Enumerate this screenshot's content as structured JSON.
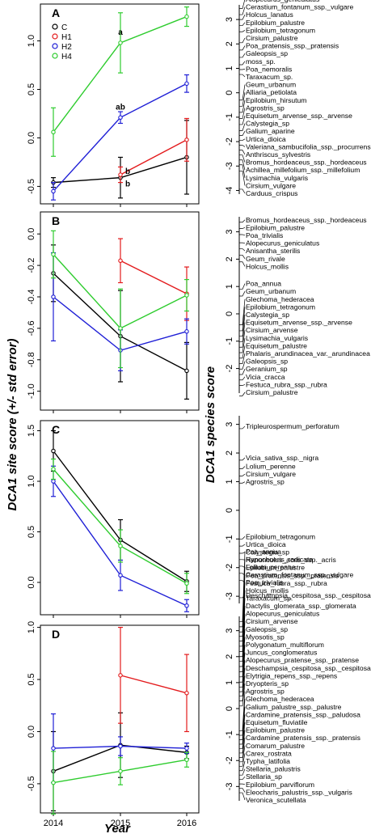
{
  "figure": {
    "y_axis_label_left": "DCA1 site score (+/- std error)",
    "y_axis_label_right": "DCA1 species score",
    "x_axis_label": "Year",
    "x_ticks": [
      "2014",
      "2015",
      "2016"
    ]
  },
  "legend": [
    {
      "name": "C",
      "color": "#000000"
    },
    {
      "name": "H1",
      "color": "#e31a1c"
    },
    {
      "name": "H2",
      "color": "#1f1fd6"
    },
    {
      "name": "H4",
      "color": "#2ecc2e"
    }
  ],
  "chart_data": [
    {
      "type": "line",
      "panel": "A",
      "x": [
        "2014",
        "2015",
        "2016"
      ],
      "ylim": [
        -0.68,
        1.38
      ],
      "yticks": [
        -0.5,
        0.0,
        0.5,
        1.0
      ],
      "ytick_labels": [
        "-0.5",
        "0.0",
        "0.5",
        "1.0"
      ],
      "series": [
        {
          "name": "C",
          "values": [
            -0.46,
            -0.41,
            -0.2
          ],
          "errors": [
            0.05,
            0.21,
            0.38
          ]
        },
        {
          "name": "H1",
          "values": [
            null,
            -0.38,
            -0.02
          ],
          "errors": [
            null,
            0.08,
            0.22
          ]
        },
        {
          "name": "H2",
          "values": [
            -0.55,
            0.21,
            0.56
          ],
          "errors": [
            0.09,
            0.06,
            0.09
          ]
        },
        {
          "name": "H4",
          "values": [
            0.06,
            0.98,
            1.25
          ],
          "errors": [
            0.25,
            0.31,
            0.1
          ]
        }
      ],
      "annotations": [
        "a",
        "ab",
        "b",
        "b"
      ],
      "species_ylim": [
        -4.15,
        3.6
      ],
      "species_yticks": [
        3,
        2,
        1,
        0,
        -1,
        -2,
        -3,
        -4
      ],
      "species": [
        {
          "label": "Alopecurus_geniculatus",
          "score": 3.45
        },
        {
          "label": "Cerastium_fontanum_ssp._vulgare",
          "score": 3.2
        },
        {
          "label": "Holcus_lanatus",
          "score": 3.0
        },
        {
          "label": "Epilobium_palustre",
          "score": 2.75
        },
        {
          "label": "Epilobium_tetragonum",
          "score": 2.5
        },
        {
          "label": "Cirsium_palustre",
          "score": 2.05
        },
        {
          "label": "Poa_pratensis_ssp._pratensis",
          "score": 1.75
        },
        {
          "label": "Galeopsis_sp",
          "score": 1.45
        },
        {
          "label": "moss_sp.",
          "score": 1.15
        },
        {
          "label": "Poa_nemoralis",
          "score": 0.95
        },
        {
          "label": "Taraxacum_sp.",
          "score": 0.75
        },
        {
          "label": "Geum_urbanum",
          "score": -0.3
        },
        {
          "label": "Alliaria_petiolata",
          "score": -0.55
        },
        {
          "label": "Epilobium_hirsutum",
          "score": -0.8
        },
        {
          "label": "Agrostris_sp",
          "score": -1.05
        },
        {
          "label": "Equisetum_arvense_ssp._arvense",
          "score": -1.3
        },
        {
          "label": "Calystegia_sp",
          "score": -1.55
        },
        {
          "label": "Galium_aparine",
          "score": -1.75
        },
        {
          "label": "Urtica_dioica",
          "score": -1.95
        },
        {
          "label": "Valeriana_sambucifolia_ssp._procurrens",
          "score": -2.15
        },
        {
          "label": "Anthriscus_sylvestris",
          "score": -2.35
        },
        {
          "label": "Bromus_hordeaceus_ssp._hordeaceus",
          "score": -2.55
        },
        {
          "label": "Achillea_millefolium_ssp._millefolium",
          "score": -2.75
        },
        {
          "label": "Lysimachia_vulgaris",
          "score": -2.95
        },
        {
          "label": "Cirsium_vulgare",
          "score": -3.2
        },
        {
          "label": "Carduus_crispus",
          "score": -3.95
        }
      ]
    },
    {
      "type": "line",
      "panel": "B",
      "x": [
        "2014",
        "2015",
        "2016"
      ],
      "ylim": [
        -1.12,
        0.14
      ],
      "yticks": [
        -1.0,
        -0.8,
        -0.6,
        -0.4,
        -0.2,
        0.0
      ],
      "ytick_labels": [
        "-1.0",
        "-0.8",
        "-0.6",
        "-0.4",
        "-0.2",
        "0.0"
      ],
      "series": [
        {
          "name": "C",
          "values": [
            -0.25,
            -0.65,
            -0.87
          ],
          "errors": [
            0.18,
            0.29,
            0.18
          ]
        },
        {
          "name": "H1",
          "values": [
            null,
            -0.17,
            -0.38
          ],
          "errors": [
            null,
            0.14,
            0.17
          ]
        },
        {
          "name": "H2",
          "values": [
            -0.4,
            -0.74,
            -0.62
          ],
          "errors": [
            0.28,
            0.13,
            0.08
          ]
        },
        {
          "name": "H4",
          "values": [
            -0.13,
            -0.6,
            -0.39
          ],
          "errors": [
            0.15,
            0.25,
            0.1
          ]
        }
      ],
      "species_ylim": [
        -2.9,
        3.55
      ],
      "species_yticks": [
        3,
        2,
        1,
        0,
        -1,
        -2
      ],
      "species": [
        {
          "label": "Bromus_hordeaceus_ssp._hordeaceus",
          "score": 3.35
        },
        {
          "label": "Epilobium_palustre",
          "score": 3.12
        },
        {
          "label": "Poa_trivialis",
          "score": 2.9
        },
        {
          "label": "Alopecurus_geniculatus",
          "score": 2.6
        },
        {
          "label": "Anisantha_sterilis",
          "score": 2.38
        },
        {
          "label": "Geum_rivale",
          "score": 2.15
        },
        {
          "label": "Holcus_mollis",
          "score": 1.9
        },
        {
          "label": "Poa_annua",
          "score": 0.9
        },
        {
          "label": "Geum_urbanum",
          "score": 0.65
        },
        {
          "label": "Glechoma_hederacea",
          "score": -0.4
        },
        {
          "label": "Epilobium_tetragonum",
          "score": -0.62
        },
        {
          "label": "Calystegia_sp",
          "score": -0.82
        },
        {
          "label": "Equisetum_arvense_ssp._arvense",
          "score": -1.02
        },
        {
          "label": "Cirsium_arvense",
          "score": -1.22
        },
        {
          "label": "Lysimachia_vulgaris",
          "score": -1.42
        },
        {
          "label": "Equisetum_palustre",
          "score": -1.62
        },
        {
          "label": "Phalaris_arundinacea_var._arundinacea",
          "score": -1.82
        },
        {
          "label": "Galeopsis_sp",
          "score": -2.02
        },
        {
          "label": "Geranium_sp",
          "score": -2.22
        },
        {
          "label": "Vicia_cracca",
          "score": -2.42
        },
        {
          "label": "Festuca_rubra_ssp._rubra",
          "score": -2.62
        },
        {
          "label": "Cirsium_palustre",
          "score": -3.0
        }
      ]
    },
    {
      "type": "line",
      "panel": "C",
      "x": [
        "2014",
        "2015",
        "2016"
      ],
      "ylim": [
        -0.32,
        1.6
      ],
      "yticks": [
        0.0,
        0.5,
        1.0,
        1.5
      ],
      "ytick_labels": [
        "0.0",
        "0.5",
        "1.0",
        "1.5"
      ],
      "series": [
        {
          "name": "C",
          "values": [
            1.3,
            0.42,
            0.01
          ],
          "errors": [
            0.2,
            0.2,
            0.1
          ]
        },
        {
          "name": "H2",
          "values": [
            1.0,
            0.07,
            -0.23
          ],
          "errors": [
            0.15,
            0.15,
            0.06
          ]
        },
        {
          "name": "H4",
          "values": [
            1.12,
            0.36,
            -0.01
          ],
          "errors": [
            0.1,
            0.16,
            0.1
          ]
        }
      ],
      "species_ylim": [
        -3.25,
        3.3
      ],
      "species_yticks": [
        3,
        2,
        1,
        0,
        -1,
        -2,
        -3
      ],
      "species": [
        {
          "label": "Tripleurospermum_perforatum",
          "score": 2.85
        },
        {
          "label": "Vicia_sativa_ssp._nigra",
          "score": 1.75
        },
        {
          "label": "Lolium_perenne",
          "score": 1.45
        },
        {
          "label": "Cirsium_vulgare",
          "score": 1.2
        },
        {
          "label": "Agrostris_sp",
          "score": 0.95
        },
        {
          "label": "Epilobium_tetragonum",
          "score": -1.0
        },
        {
          "label": "Urtica_dioica",
          "score": -1.25
        },
        {
          "label": "Calystegia_sp",
          "score": -1.5
        },
        {
          "label": "Ranunculus_acris_ssp._acris",
          "score": -1.72
        },
        {
          "label": "Epilobium_palustre",
          "score": -1.95
        },
        {
          "label": "Poa_pratensis_ssp._pratensis",
          "score": -2.2
        },
        {
          "label": "Festuca_rubra_ssp._rubra",
          "score": -2.45
        },
        {
          "label": "Deschampsia_cespitosa_ssp._cespitosa",
          "score": -3.05
        }
      ]
    },
    {
      "type": "line",
      "panel": "D",
      "x": [
        "2014",
        "2015",
        "2016"
      ],
      "ylim": [
        -0.78,
        1.02
      ],
      "yticks": [
        -0.5,
        0.0,
        0.5,
        1.0
      ],
      "ytick_labels": [
        "-0.5",
        "0.0",
        "0.5",
        "1.0"
      ],
      "series": [
        {
          "name": "C",
          "values": [
            -0.38,
            -0.13,
            -0.2
          ],
          "errors": [
            0.38,
            0.31,
            0.06
          ]
        },
        {
          "name": "H1",
          "values": [
            null,
            0.54,
            0.37
          ],
          "errors": [
            null,
            0.46,
            0.37
          ]
        },
        {
          "name": "H2",
          "values": [
            -0.16,
            -0.14,
            -0.16
          ],
          "errors": [
            0.33,
            0.09,
            0.05
          ]
        },
        {
          "name": "H4",
          "values": [
            -0.49,
            -0.38,
            -0.27
          ],
          "errors": [
            0.3,
            0.13,
            0.07
          ]
        }
      ],
      "species_ylim": [
        -3.55,
        3.55
      ],
      "species_yticks": [
        3,
        2,
        1,
        0,
        -1,
        -2,
        -3
      ],
      "species": [
        {
          "label": "Poa_annua",
          "score": 3.35
        },
        {
          "label": "Hypochoeris_radicata",
          "score": 3.15
        },
        {
          "label": "Lolium_perenne",
          "score": 2.95
        },
        {
          "label": "Cerastium_fontanum_ssp._vulgare",
          "score": 2.78
        },
        {
          "label": "Poa_trivialis",
          "score": 2.6
        },
        {
          "label": "Holcus_mollis",
          "score": 2.4
        },
        {
          "label": "Taraxacum_sp.",
          "score": 2.2
        },
        {
          "label": "Dactylis_glomerata_ssp._glomerata",
          "score": 2.0
        },
        {
          "label": "Alopecurus_geniculatus",
          "score": 1.82
        },
        {
          "label": "Cirsium_arvense",
          "score": 1.62
        },
        {
          "label": "Galeopsis_sp",
          "score": 1.42
        },
        {
          "label": "Myosotis_sp",
          "score": 1.22
        },
        {
          "label": "Polygonatum_multiflorum",
          "score": 1.02
        },
        {
          "label": "Juncus_conglomeratus",
          "score": 0.82
        },
        {
          "label": "Alopecurus_pratense_ssp._pratense",
          "score": 0.65
        },
        {
          "label": "Deschampsia_cespitosa_ssp._cespitosa",
          "score": 0.48
        },
        {
          "label": "Elytrigia_repens_ssp._repens",
          "score": 0.3
        },
        {
          "label": "Dryopteris_sp",
          "score": 0.1
        },
        {
          "label": "Agrostris_sp",
          "score": -0.85
        },
        {
          "label": "Glechoma_hederacea",
          "score": -1.03
        },
        {
          "label": "Galium_palustre_ssp._palustre",
          "score": -1.2
        },
        {
          "label": "Cardamine_pratensis_ssp._paludosa",
          "score": -1.37
        },
        {
          "label": "Equisetum_fluviatile",
          "score": -1.54
        },
        {
          "label": "Epilobium_palustre",
          "score": -1.71
        },
        {
          "label": "Cardamine_pratensis_ssp._pratensis",
          "score": -1.88
        },
        {
          "label": "Comarum_palustre",
          "score": -2.05
        },
        {
          "label": "Carex_rostrata",
          "score": -2.22
        },
        {
          "label": "Typha_latifolia",
          "score": -2.39
        },
        {
          "label": "Stellaria_palustris",
          "score": -2.56
        },
        {
          "label": "Stellaria_sp",
          "score": -2.73
        },
        {
          "label": "Epilobium_parviflorum",
          "score": -2.9
        },
        {
          "label": "Eleocharis_palustris_ssp._vulgaris",
          "score": -3.07
        },
        {
          "label": "Veronica_scutellata",
          "score": -3.24
        }
      ]
    }
  ]
}
